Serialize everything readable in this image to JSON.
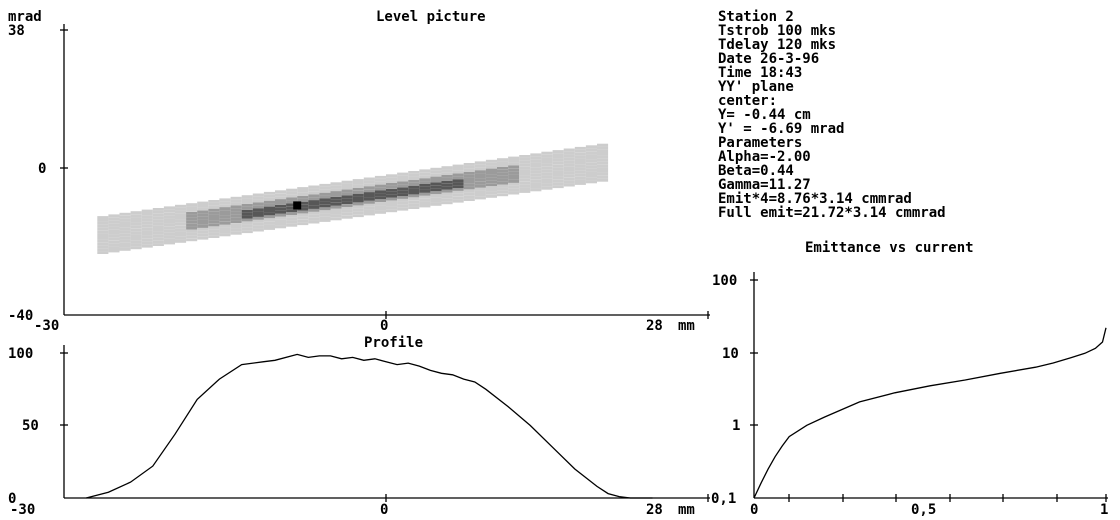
{
  "chart_data": [
    {
      "type": "heatmap",
      "title": "Level picture",
      "ylabel": "mrad",
      "xunit": "mm",
      "xlim": [
        -30,
        28
      ],
      "ylim": [
        -40,
        38
      ],
      "x_ticks": [
        "-30",
        "0",
        "28"
      ],
      "y_ticks": [
        "38",
        "0",
        "-40"
      ],
      "ellipse": {
        "center": [
          -9,
          -10
        ],
        "slope": 0.44,
        "x_span": [
          -27,
          18
        ],
        "cross_width_mrad": 5
      },
      "peak": [
        -9,
        -10
      ],
      "colors": {
        "outer": "#c4c4c4",
        "mid": "#8a8a8a",
        "inner": "#3a3a3a",
        "peak": "#000000"
      }
    },
    {
      "type": "line",
      "title": "Profile",
      "xunit": "mm",
      "xlim": [
        -30,
        28
      ],
      "ylim": [
        0,
        100
      ],
      "x_ticks": [
        "-30",
        "0",
        "28"
      ],
      "y_ticks": [
        "100",
        "50",
        "0"
      ],
      "x": [
        -28,
        -26,
        -24,
        -22,
        -20,
        -18,
        -16,
        -14,
        -12,
        -11,
        -9,
        -8,
        -7,
        -6,
        -5,
        -4,
        -3,
        -2,
        -1,
        0,
        1,
        2,
        3,
        4,
        5,
        6,
        7,
        8,
        10,
        12,
        14,
        16,
        18,
        19,
        20,
        21,
        22,
        23
      ],
      "values": [
        0,
        4,
        11,
        22,
        44,
        68,
        82,
        92,
        94,
        95,
        99,
        97,
        98,
        98,
        96,
        97,
        95,
        96,
        94,
        92,
        93,
        91,
        88,
        86,
        85,
        82,
        80,
        75,
        63,
        50,
        35,
        20,
        8,
        3,
        1,
        0,
        0,
        0
      ]
    },
    {
      "type": "line",
      "title": "Emittance vs current",
      "scale_y": "log",
      "xlim": [
        0,
        1
      ],
      "ylim": [
        0.1,
        100
      ],
      "x_ticks": [
        "0",
        "0,5",
        "1"
      ],
      "y_ticks": [
        "100",
        "10",
        "1",
        "0,1"
      ],
      "x": [
        0,
        0.02,
        0.04,
        0.06,
        0.08,
        0.1,
        0.15,
        0.2,
        0.3,
        0.4,
        0.5,
        0.6,
        0.7,
        0.8,
        0.85,
        0.9,
        0.94,
        0.97,
        0.99,
        1.0
      ],
      "values": [
        0.1,
        0.16,
        0.25,
        0.37,
        0.52,
        0.7,
        1.0,
        1.3,
        2.1,
        2.8,
        3.5,
        4.2,
        5.2,
        6.3,
        7.2,
        8.5,
        9.8,
        11.5,
        14.0,
        22.0
      ]
    }
  ],
  "info": {
    "lines": [
      "Station 2",
      "Tstrob 100 mks",
      "Tdelay 120 mks",
      "Date 26-3-96",
      "Time 18:43",
      "YY' plane",
      "center:",
      "Y= -0.44 cm",
      "Y' = -6.69 mrad",
      "Parameters",
      "Alpha=-2.00",
      "Beta=0.44",
      "Gamma=11.27",
      "Emit*4=8.76*3.14 cmmrad",
      "Full emit=21.72*3.14 cmmrad"
    ]
  }
}
